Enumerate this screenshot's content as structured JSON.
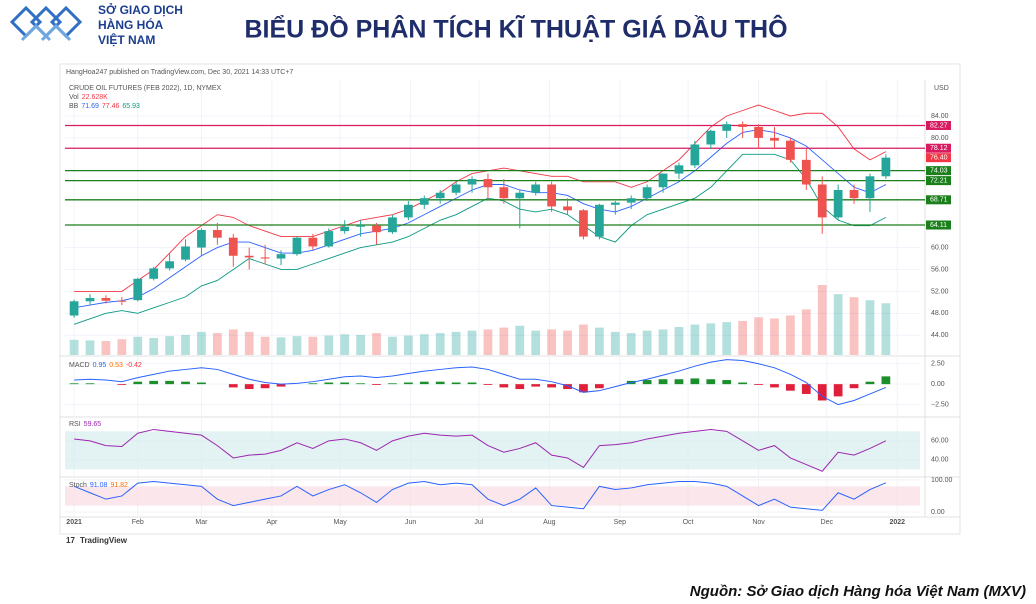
{
  "header": {
    "logo_lines": [
      "SỞ GIAO DỊCH",
      "HÀNG HÓA",
      "VIỆT NAM"
    ],
    "title": "BIỂU ĐỒ PHÂN TÍCH KĨ THUẬT GIÁ DẦU THÔ"
  },
  "published": "HangHoa247 published on TradingView.com, Dec 30, 2021 14:33 UTC+7",
  "brand": "TradingView",
  "source": "Nguồn: Sở Giao dịch Hàng hóa Việt Nam (MXV)",
  "chart_data": [
    {
      "type": "candlestick",
      "title": "CRUDE OIL FUTURES (FEB 2022), 1D, NYMEX",
      "unit": "USD",
      "vol_legend": [
        "Vol",
        "22.628K"
      ],
      "bb_legend": [
        "BB",
        "71.69",
        "77.46",
        "65.93"
      ],
      "up_color": "#26a69a",
      "down_color": "#ef5350",
      "x": [
        3,
        10,
        17,
        24,
        31,
        38,
        45,
        52,
        59,
        66,
        73,
        80,
        87,
        94,
        101,
        108,
        115,
        122,
        129,
        136,
        143,
        150,
        157,
        164,
        171,
        178,
        185,
        192,
        199,
        206,
        213,
        220,
        227,
        234,
        241,
        248,
        255,
        262,
        269,
        276,
        283,
        290,
        297,
        304,
        311,
        318,
        325,
        332,
        339,
        346,
        353,
        360
      ],
      "xlim": [
        -1,
        375
      ],
      "xticks": [
        {
          "value": 3,
          "label": "2021"
        },
        {
          "value": 31,
          "label": "Feb"
        },
        {
          "value": 59,
          "label": "Mar"
        },
        {
          "value": 90,
          "label": "Apr"
        },
        {
          "value": 120,
          "label": "May"
        },
        {
          "value": 151,
          "label": "Jun"
        },
        {
          "value": 181,
          "label": "Jul"
        },
        {
          "value": 212,
          "label": "Aug"
        },
        {
          "value": 243,
          "label": "Sep"
        },
        {
          "value": 273,
          "label": "Oct"
        },
        {
          "value": 304,
          "label": "Nov"
        },
        {
          "value": 334,
          "label": "Dec"
        },
        {
          "value": 365,
          "label": "2022"
        }
      ],
      "ylim": [
        40.4,
        90.2
      ],
      "yticks": [
        {
          "value": 44,
          "label": "44.00"
        },
        {
          "value": 48,
          "label": "48.00"
        },
        {
          "value": 52,
          "label": "52.00"
        },
        {
          "value": 56,
          "label": "56.00"
        },
        {
          "value": 60,
          "label": "60.00"
        },
        {
          "value": 80,
          "label": "80.00"
        },
        {
          "value": 84,
          "label": "84.00"
        }
      ],
      "open": [
        47.6,
        50.2,
        50.8,
        50.3,
        50.4,
        54.3,
        56.2,
        57.8,
        60.0,
        63.2,
        61.8,
        58.5,
        58.2,
        58.0,
        58.8,
        61.8,
        60.2,
        63.0,
        63.8,
        64.0,
        62.8,
        65.5,
        67.8,
        69.0,
        70.0,
        71.5,
        72.5,
        71.0,
        69.0,
        70.0,
        71.5,
        67.5,
        66.8,
        62.0,
        67.8,
        68.2,
        69.0,
        71.0,
        73.5,
        75.0,
        78.8,
        81.3,
        82.5,
        82.0,
        80.0,
        79.5,
        76.0,
        71.5,
        65.5,
        70.5,
        69.0,
        73.0
      ],
      "high": [
        50.5,
        51.5,
        51.3,
        51.0,
        54.5,
        56.5,
        59.0,
        61.5,
        63.5,
        64.5,
        62.5,
        60.0,
        60.5,
        59.5,
        62.0,
        62.5,
        63.5,
        65.0,
        65.0,
        64.5,
        66.0,
        68.5,
        69.5,
        70.5,
        72.0,
        73.0,
        73.5,
        72.5,
        70.5,
        72.0,
        72.0,
        69.0,
        67.0,
        68.0,
        68.5,
        69.5,
        71.5,
        73.5,
        75.5,
        79.5,
        81.5,
        83.0,
        83.0,
        82.5,
        82.0,
        80.0,
        78.0,
        73.0,
        71.5,
        71.5,
        73.5,
        77.0
      ],
      "low": [
        47.2,
        49.5,
        49.8,
        49.5,
        50.2,
        54.0,
        55.8,
        57.5,
        58.5,
        60.5,
        56.5,
        56.0,
        57.0,
        56.8,
        58.5,
        59.5,
        60.0,
        62.5,
        62.0,
        60.5,
        62.5,
        65.0,
        67.0,
        68.0,
        69.5,
        70.0,
        69.0,
        68.0,
        63.5,
        69.5,
        66.5,
        66.0,
        61.5,
        61.5,
        66.0,
        67.0,
        68.5,
        70.0,
        72.5,
        74.5,
        78.0,
        80.0,
        80.0,
        78.0,
        78.0,
        75.5,
        70.5,
        62.5,
        65.0,
        68.0,
        66.5,
        72.5
      ],
      "close": [
        50.2,
        50.8,
        50.3,
        50.2,
        54.3,
        56.2,
        57.5,
        60.2,
        63.2,
        61.8,
        58.5,
        58.2,
        58.0,
        58.8,
        61.8,
        60.2,
        63.0,
        63.8,
        64.0,
        62.8,
        65.5,
        67.8,
        69.0,
        70.0,
        71.5,
        72.5,
        71.0,
        69.0,
        70.0,
        71.5,
        67.5,
        66.8,
        62.0,
        67.8,
        68.2,
        69.0,
        71.0,
        73.5,
        75.0,
        78.8,
        81.3,
        82.5,
        82.0,
        80.0,
        79.5,
        76.0,
        71.5,
        65.5,
        70.5,
        69.0,
        73.0,
        76.4
      ],
      "bb_upper": [
        52,
        52,
        52,
        52,
        54,
        56,
        59,
        62,
        64,
        66,
        65.5,
        64,
        63,
        62,
        62,
        62,
        63,
        64,
        65,
        65.5,
        66,
        67,
        68.5,
        70,
        72,
        73.5,
        74,
        74.5,
        74,
        73.5,
        73,
        73,
        72,
        72,
        72,
        71,
        72,
        74,
        76,
        79,
        82,
        84,
        85,
        86,
        85,
        84,
        84.5,
        84.5,
        82,
        78,
        76,
        77.5
      ],
      "bb_middle": [
        49,
        49.5,
        50,
        50.3,
        51,
        52.5,
        54.5,
        56.5,
        58.5,
        60,
        61,
        61,
        60,
        59,
        59,
        59.5,
        60.5,
        61.5,
        62.5,
        63,
        63.5,
        64.5,
        66,
        67.5,
        69,
        70.5,
        71.5,
        71.5,
        70.5,
        70,
        70,
        69.5,
        68,
        67,
        66.5,
        67.5,
        69,
        70.5,
        72,
        74,
        76.5,
        79,
        81,
        81.5,
        81,
        80,
        78.5,
        76,
        73.5,
        71,
        70,
        71.5
      ],
      "bb_lower": [
        46,
        47,
        48,
        48.5,
        48,
        49,
        50,
        51,
        53,
        54,
        56,
        58,
        57,
        56,
        56,
        57,
        58,
        59,
        60,
        60.5,
        61,
        62,
        63.5,
        65,
        66,
        67.5,
        69,
        68.5,
        67,
        66.5,
        67,
        66,
        64,
        62,
        61,
        64,
        66,
        67,
        68,
        69,
        71,
        74,
        77,
        77,
        77,
        76,
        72.5,
        67.5,
        65,
        64,
        64,
        65.5
      ],
      "bb_colors": [
        "#f23645",
        "#2962ff",
        "#089981"
      ],
      "volume": [
        250,
        240,
        230,
        260,
        300,
        280,
        310,
        330,
        380,
        360,
        420,
        380,
        300,
        290,
        310,
        300,
        320,
        340,
        330,
        360,
        300,
        320,
        340,
        360,
        380,
        400,
        420,
        450,
        480,
        400,
        420,
        400,
        500,
        450,
        380,
        360,
        400,
        420,
        460,
        500,
        520,
        540,
        560,
        620,
        600,
        650,
        750,
        1150,
        1000,
        950,
        900,
        850
      ],
      "hlines": [
        {
          "value": 82.27,
          "color": "#d81b60"
        },
        {
          "value": 78.12,
          "color": "#d81b60"
        },
        {
          "value": 74.03,
          "color": "#1b7f1b"
        },
        {
          "value": 72.21,
          "color": "#1b7f1b"
        },
        {
          "value": 68.71,
          "color": "#1b7f1b"
        },
        {
          "value": 64.11,
          "color": "#1b7f1b"
        }
      ],
      "last_price": {
        "value": 76.4,
        "label": "76.40",
        "color": "#f23645"
      }
    },
    {
      "type": "macd",
      "legend": [
        "MACD",
        "0.95",
        "0.53",
        "-0.42"
      ],
      "legend_colors": [
        "#555",
        "#2962ff",
        "#ff6d00",
        "#f23645"
      ],
      "ylim": [
        -3.9,
        3.2
      ],
      "yticks": [
        {
          "value": 2.5,
          "label": "2.50"
        },
        {
          "value": 0,
          "label": "0.00"
        },
        {
          "value": -2.5,
          "label": "−2.50"
        }
      ],
      "line_color": "#2962ff",
      "up_color": "#1b8f2b",
      "down_color": "#e0203a",
      "macd": [
        0.5,
        0.6,
        0.5,
        0.3,
        0.8,
        1.2,
        1.6,
        1.8,
        2.0,
        1.8,
        1.2,
        0.6,
        0.2,
        0,
        0.1,
        0.3,
        0.6,
        0.9,
        1.0,
        0.8,
        1.0,
        1.3,
        1.6,
        1.8,
        2.0,
        2.1,
        1.8,
        1.2,
        0.6,
        0.6,
        0.3,
        -0.2,
        -1.0,
        -0.8,
        -0.3,
        0.2,
        0.6,
        1.1,
        1.6,
        2.2,
        2.7,
        3.0,
        2.9,
        2.5,
        2.0,
        1.2,
        0.2,
        -1.5,
        -2.5,
        -2.0,
        -1.2,
        -0.4
      ],
      "histogram": [
        0.1,
        0.1,
        0,
        -0.1,
        0.3,
        0.4,
        0.4,
        0.3,
        0.2,
        0,
        -0.4,
        -0.6,
        -0.5,
        -0.3,
        0,
        0.1,
        0.2,
        0.2,
        0.1,
        -0.1,
        0.1,
        0.2,
        0.3,
        0.3,
        0.2,
        0.2,
        -0.1,
        -0.4,
        -0.6,
        -0.3,
        -0.4,
        -0.6,
        -1.0,
        -0.5,
        0,
        0.4,
        0.5,
        0.6,
        0.6,
        0.7,
        0.6,
        0.5,
        0.2,
        -0.1,
        -0.4,
        -0.8,
        -1.2,
        -2.0,
        -1.5,
        -0.5,
        0.3,
        0.95
      ]
    },
    {
      "type": "rsi",
      "legend": [
        "RSI",
        "59.65"
      ],
      "legend_colors": [
        "#555",
        "#9c27b0"
      ],
      "line_color": "#9c27b0",
      "band": [
        30,
        70
      ],
      "band_color": "#d7ecec",
      "ylim": [
        23,
        83
      ],
      "yticks": [
        {
          "value": 60,
          "label": "60.00"
        },
        {
          "value": 40,
          "label": "40.00"
        }
      ],
      "values": [
        62,
        60,
        55,
        54,
        68,
        72,
        70,
        68,
        66,
        55,
        42,
        45,
        46,
        50,
        58,
        52,
        60,
        62,
        58,
        50,
        60,
        65,
        68,
        66,
        65,
        66,
        55,
        48,
        52,
        58,
        45,
        42,
        32,
        55,
        56,
        58,
        62,
        65,
        68,
        70,
        72,
        70,
        60,
        50,
        55,
        42,
        35,
        28,
        48,
        45,
        52,
        60
      ]
    },
    {
      "type": "stoch",
      "legend": [
        "Stoch",
        "91.08",
        "91.82"
      ],
      "legend_colors": [
        "#555",
        "#2962ff",
        "#ff6d00"
      ],
      "line_color": "#2962ff",
      "band": [
        20,
        80
      ],
      "band_color": "#f8dbe3",
      "ylim": [
        -12.5,
        106
      ],
      "yticks": [
        {
          "value": 100,
          "label": "100.00"
        },
        {
          "value": 0,
          "label": "0.00"
        }
      ],
      "values": [
        80,
        60,
        40,
        50,
        90,
        95,
        90,
        85,
        80,
        40,
        20,
        30,
        40,
        50,
        80,
        50,
        70,
        85,
        60,
        30,
        70,
        90,
        95,
        85,
        90,
        85,
        40,
        20,
        40,
        75,
        20,
        15,
        10,
        80,
        70,
        75,
        85,
        90,
        95,
        95,
        90,
        80,
        50,
        20,
        40,
        15,
        10,
        5,
        60,
        40,
        70,
        91
      ]
    }
  ]
}
